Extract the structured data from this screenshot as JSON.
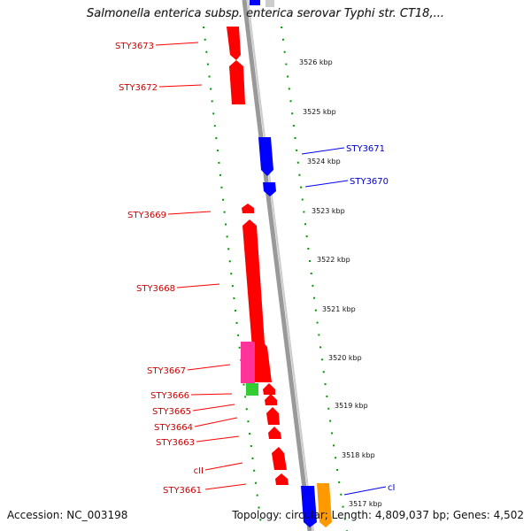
{
  "header": {
    "title": "Salmonella enterica subsp. enterica serovar Typhi str. CT18,..."
  },
  "footer": {
    "accession": "Accession: NC_003198",
    "summary": "Topology: circular; Length: 4,809,037 bp; Genes: 4,502"
  },
  "colors": {
    "reverse_strand": "#ff0000",
    "forward_strand": "#0000ff",
    "pink": "#ff3399",
    "green": "#33cc33",
    "orange": "#ff9900",
    "backbone": "#999999",
    "scale_dots": "#009900"
  },
  "scale": {
    "ticks": [
      "3526 kbp",
      "3525 kbp",
      "3524 kbp",
      "3523 kbp",
      "3522 kbp",
      "3521 kbp",
      "3520 kbp",
      "3519 kbp",
      "3518 kbp",
      "3517 kbp"
    ]
  },
  "genes": {
    "left_labels": [
      "STY3673",
      "STY3672",
      "STY3669",
      "STY3668",
      "STY3667",
      "STY3666",
      "STY3665",
      "STY3664",
      "STY3663",
      "cII",
      "STY3661"
    ],
    "right_labels": [
      "STY3671",
      "STY3670",
      "cI"
    ]
  }
}
